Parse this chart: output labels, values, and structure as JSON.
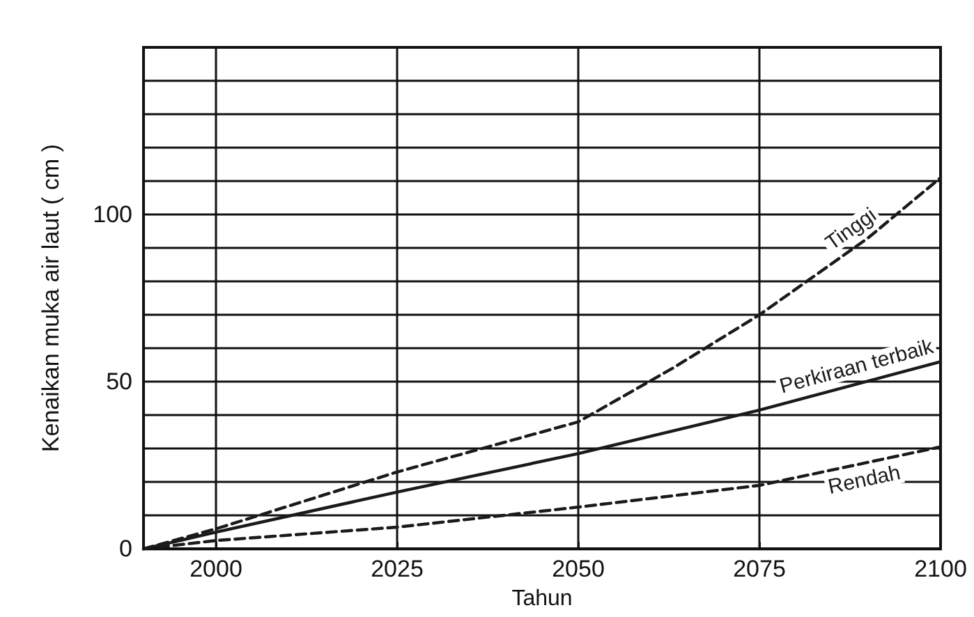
{
  "chart_data": {
    "type": "line",
    "xlabel": "Tahun",
    "ylabel": "Kenaikan muka air laut ( cm )",
    "series": [
      {
        "name": "Tinggi",
        "color": "#1a1a1a",
        "line_style": "dashed",
        "x": [
          1990,
          2000,
          2025,
          2050,
          2063,
          2075,
          2090,
          2100
        ],
        "values": [
          0,
          6,
          23,
          38,
          54,
          70,
          93,
          111
        ]
      },
      {
        "name": "Perkiraan terbaik",
        "color": "#1a1a1a",
        "line_style": "solid",
        "x": [
          1990,
          2000,
          2025,
          2050,
          2075,
          2100
        ],
        "values": [
          0,
          5,
          17,
          28.5,
          41.5,
          56
        ]
      },
      {
        "name": "Rendah",
        "color": "#1a1a1a",
        "line_style": "dashed",
        "x": [
          1990,
          2000,
          2025,
          2050,
          2075,
          2100
        ],
        "values": [
          0,
          2.5,
          6.5,
          12.5,
          19,
          30.5
        ]
      }
    ],
    "xlim": [
      1990,
      2100
    ],
    "xticks": [
      2000,
      2025,
      2050,
      2075,
      2100
    ],
    "ylim": [
      0,
      150
    ],
    "yticks": [
      0,
      {
        "value": 10,
        "label": null
      },
      {
        "value": 20,
        "label": null
      },
      {
        "value": 30,
        "label": null
      },
      {
        "value": 40,
        "label": null
      },
      50,
      {
        "value": 60,
        "label": null
      },
      {
        "value": 70,
        "label": null
      },
      {
        "value": 80,
        "label": null
      },
      {
        "value": 90,
        "label": null
      },
      100,
      {
        "value": 110,
        "label": null
      },
      {
        "value": 120,
        "label": null
      },
      {
        "value": 130,
        "label": null
      },
      {
        "value": 140,
        "label": null
      }
    ],
    "grid": true,
    "legend": false,
    "marker": "none"
  }
}
